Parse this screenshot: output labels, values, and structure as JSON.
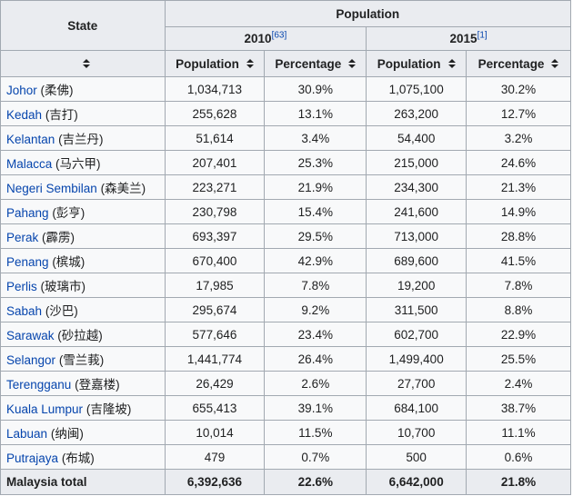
{
  "header": {
    "state": "State",
    "population": "Population",
    "year_2010": "2010",
    "ref_2010": "[63]",
    "year_2015": "2015",
    "ref_2015": "[1]",
    "col_population_2010": "Population",
    "col_percentage_2010": "Percentage",
    "col_population_2015": "Population",
    "col_percentage_2015": "Percentage"
  },
  "rows": [
    {
      "state": "Johor",
      "chinese": "(柔佛)",
      "pop2010": "1,034,713",
      "pct2010": "30.9%",
      "pop2015": "1,075,100",
      "pct2015": "30.2%"
    },
    {
      "state": "Kedah",
      "chinese": "(吉打)",
      "pop2010": "255,628",
      "pct2010": "13.1%",
      "pop2015": "263,200",
      "pct2015": "12.7%"
    },
    {
      "state": "Kelantan",
      "chinese": "(吉兰丹)",
      "pop2010": "51,614",
      "pct2010": "3.4%",
      "pop2015": "54,400",
      "pct2015": "3.2%"
    },
    {
      "state": "Malacca",
      "chinese": "(马六甲)",
      "pop2010": "207,401",
      "pct2010": "25.3%",
      "pop2015": "215,000",
      "pct2015": "24.6%"
    },
    {
      "state": "Negeri Sembilan",
      "chinese": "(森美兰)",
      "pop2010": "223,271",
      "pct2010": "21.9%",
      "pop2015": "234,300",
      "pct2015": "21.3%"
    },
    {
      "state": "Pahang",
      "chinese": "(彭亨)",
      "pop2010": "230,798",
      "pct2010": "15.4%",
      "pop2015": "241,600",
      "pct2015": "14.9%"
    },
    {
      "state": "Perak",
      "chinese": "(霹雳)",
      "pop2010": "693,397",
      "pct2010": "29.5%",
      "pop2015": "713,000",
      "pct2015": "28.8%"
    },
    {
      "state": "Penang",
      "chinese": "(槟城)",
      "pop2010": "670,400",
      "pct2010": "42.9%",
      "pop2015": "689,600",
      "pct2015": "41.5%"
    },
    {
      "state": "Perlis",
      "chinese": "(玻璃市)",
      "pop2010": "17,985",
      "pct2010": "7.8%",
      "pop2015": "19,200",
      "pct2015": "7.8%"
    },
    {
      "state": "Sabah",
      "chinese": "(沙巴)",
      "pop2010": "295,674",
      "pct2010": "9.2%",
      "pop2015": "311,500",
      "pct2015": "8.8%"
    },
    {
      "state": "Sarawak",
      "chinese": "(砂拉越)",
      "pop2010": "577,646",
      "pct2010": "23.4%",
      "pop2015": "602,700",
      "pct2015": "22.9%"
    },
    {
      "state": "Selangor",
      "chinese": "(雪兰莪)",
      "pop2010": "1,441,774",
      "pct2010": "26.4%",
      "pop2015": "1,499,400",
      "pct2015": "25.5%"
    },
    {
      "state": "Terengganu",
      "chinese": "(登嘉楼)",
      "pop2010": "26,429",
      "pct2010": "2.6%",
      "pop2015": "27,700",
      "pct2015": "2.4%"
    },
    {
      "state": "Kuala Lumpur",
      "chinese": "(吉隆坡)",
      "pop2010": "655,413",
      "pct2010": "39.1%",
      "pop2015": "684,100",
      "pct2015": "38.7%"
    },
    {
      "state": "Labuan",
      "chinese": "(纳闽)",
      "pop2010": "10,014",
      "pct2010": "11.5%",
      "pop2015": "10,700",
      "pct2015": "11.1%"
    },
    {
      "state": "Putrajaya",
      "chinese": "(布城)",
      "pop2010": "479",
      "pct2010": "0.7%",
      "pop2015": "500",
      "pct2015": "0.6%"
    }
  ],
  "total": {
    "label": "Malaysia total",
    "pop2010": "6,392,636",
    "pct2010": "22.6%",
    "pop2015": "6,642,000",
    "pct2015": "21.8%"
  }
}
